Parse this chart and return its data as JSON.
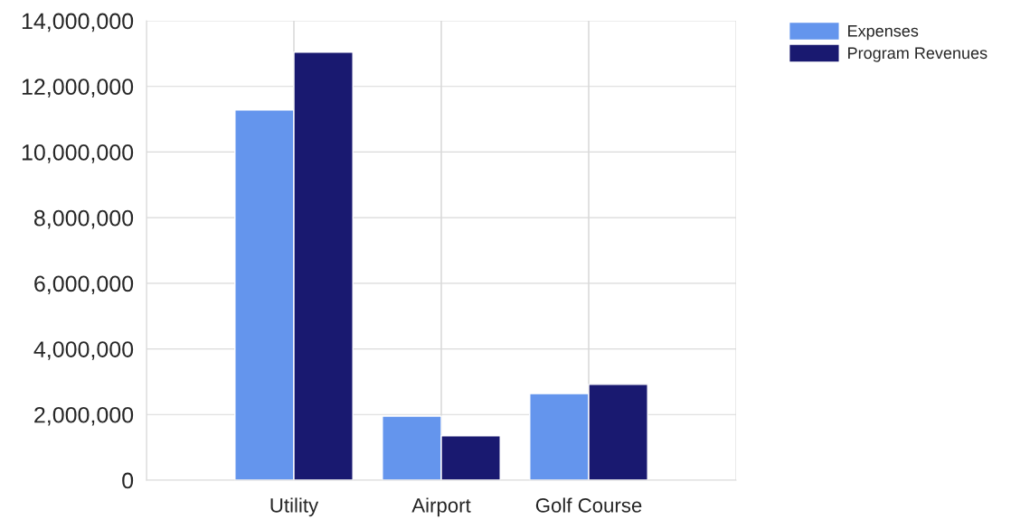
{
  "chart_data": {
    "type": "bar",
    "categories": [
      "Utility",
      "Airport",
      "Golf Course"
    ],
    "series": [
      {
        "name": "Expenses",
        "color": "#6495ed",
        "values": [
          11280000,
          1950000,
          2640000
        ]
      },
      {
        "name": "Program Revenues",
        "color": "#191970",
        "values": [
          13040000,
          1350000,
          2920000
        ]
      }
    ],
    "ylim": [
      0,
      14000000
    ],
    "yticks": [
      0,
      {
        "value": 2000000,
        "label": "2,000,000"
      },
      {
        "value": 4000000,
        "label": "4,000,000"
      },
      {
        "value": 6000000,
        "label": "6,000,000"
      },
      {
        "value": 8000000,
        "label": "8,000,000"
      },
      {
        "value": 10000000,
        "label": "10,000,000"
      },
      {
        "value": 12000000,
        "label": "12,000,000"
      },
      {
        "value": 14000000,
        "label": "14,000,000"
      }
    ],
    "grid": true,
    "legend": "top right"
  }
}
